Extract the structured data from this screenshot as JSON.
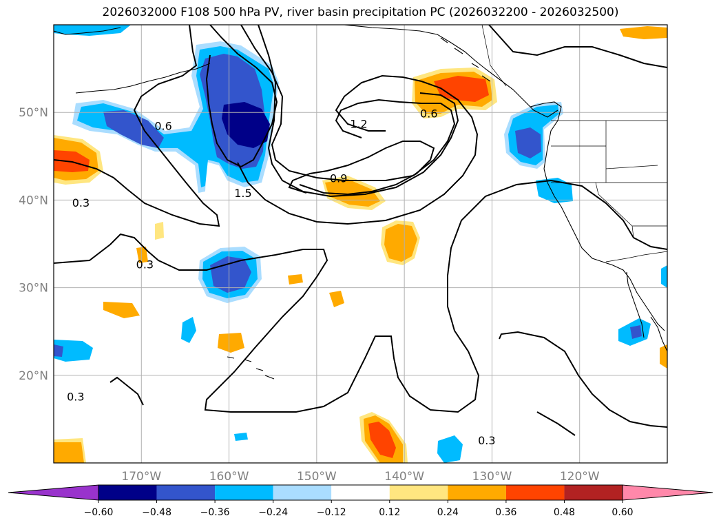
{
  "title": "2026032000 F108 500 hPa PV, river basin precipitation PC (2026032200 - 2026032500)",
  "map": {
    "lon_range": [
      -180,
      -110
    ],
    "lat_range": [
      10,
      60
    ],
    "lon_ticks": [
      {
        "value": -170,
        "label": "170°W"
      },
      {
        "value": -160,
        "label": "160°W"
      },
      {
        "value": -150,
        "label": "150°W"
      },
      {
        "value": -140,
        "label": "140°W"
      },
      {
        "value": -130,
        "label": "130°W"
      },
      {
        "value": -120,
        "label": "120°W"
      }
    ],
    "lat_ticks": [
      {
        "value": 20,
        "label": "20°N"
      },
      {
        "value": 30,
        "label": "30°N"
      },
      {
        "value": 40,
        "label": "40°N"
      },
      {
        "value": 50,
        "label": "50°N"
      }
    ],
    "grid": true
  },
  "contour_labels": [
    {
      "text": "0.6",
      "lon": -167.5,
      "lat": 48.5
    },
    {
      "text": "0.3",
      "lon": -176.9,
      "lat": 39.7
    },
    {
      "text": "0.3",
      "lon": -169.6,
      "lat": 32.7
    },
    {
      "text": "0.3",
      "lon": -177.5,
      "lat": 17.6
    },
    {
      "text": "1.5",
      "lon": -158.4,
      "lat": 40.8
    },
    {
      "text": "1.2",
      "lon": -145.2,
      "lat": 48.7
    },
    {
      "text": "0.9",
      "lon": -147.5,
      "lat": 42.5
    },
    {
      "text": "0.6",
      "lon": -137.2,
      "lat": 49.9
    },
    {
      "text": "0.3",
      "lon": -130.6,
      "lat": 12.6
    }
  ],
  "colorbar": {
    "levels": [
      -0.6,
      -0.48,
      -0.36,
      -0.24,
      -0.12,
      0.12,
      0.24,
      0.36,
      0.48,
      0.6
    ],
    "tick_labels": [
      "−0.60",
      "−0.48",
      "−0.36",
      "−0.24",
      "−0.12",
      "0.12",
      "0.24",
      "0.36",
      "0.48",
      "0.60"
    ],
    "under_color": "#9933cc",
    "colors": [
      "#000088",
      "#3355cc",
      "#00bbff",
      "#aaddff",
      "#ffffff",
      "#ffe680",
      "#ffaa00",
      "#ff4400",
      "#b22222"
    ],
    "over_color": "#ff88aa"
  }
}
